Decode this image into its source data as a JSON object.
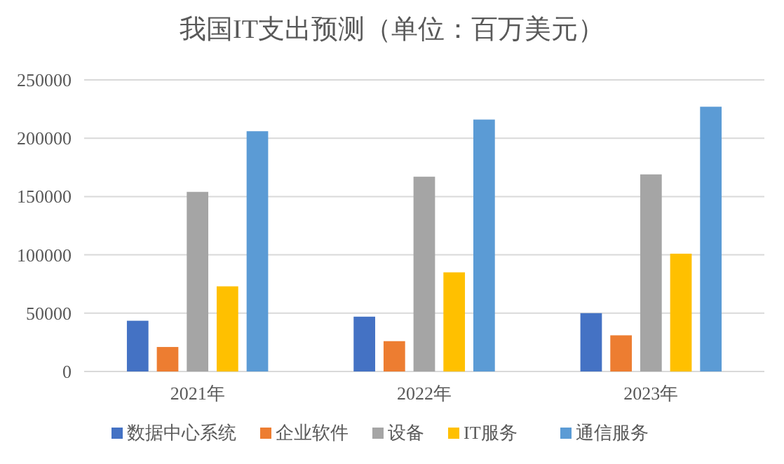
{
  "chart_data": {
    "type": "bar",
    "title": "我国IT支出预测（单位：百万美元）",
    "categories": [
      "2021年",
      "2022年",
      "2023年"
    ],
    "series": [
      {
        "name": "数据中心系统",
        "color": "#4472c4",
        "values": [
          43500,
          47000,
          50000
        ]
      },
      {
        "name": "企业软件",
        "color": "#ed7d31",
        "values": [
          21000,
          26000,
          31000
        ]
      },
      {
        "name": "设备",
        "color": "#a5a5a5",
        "values": [
          154000,
          167000,
          169000
        ]
      },
      {
        "name": "IT服务",
        "color": "#ffc000",
        "values": [
          73000,
          85000,
          101000
        ]
      },
      {
        "name": "通信服务",
        "color": "#5b9bd5",
        "values": [
          206000,
          216000,
          227000
        ]
      }
    ],
    "ylim": [
      0,
      250000
    ],
    "yticks": [
      0,
      50000,
      100000,
      150000,
      200000,
      250000
    ],
    "grid": "y",
    "legend": "bottom"
  }
}
